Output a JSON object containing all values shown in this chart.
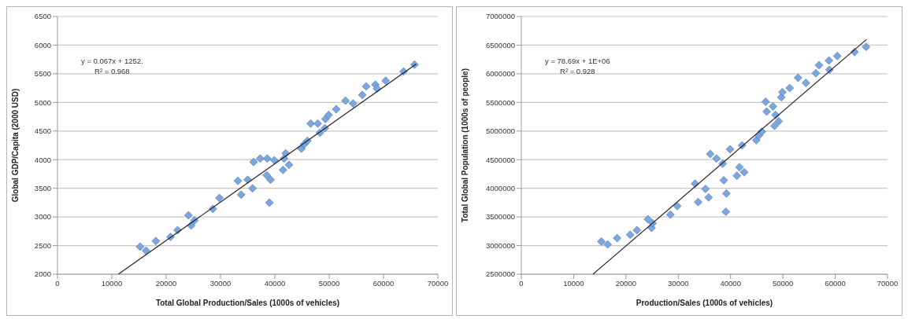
{
  "chart_data": [
    {
      "type": "scatter",
      "xlabel": "Total Global Production/Sales (1000s of vehicles)",
      "ylabel": "Global GDP/Capita (2000 USD)",
      "xlim": [
        0,
        70000
      ],
      "xticks": [
        0,
        10000,
        20000,
        30000,
        40000,
        50000,
        60000,
        70000
      ],
      "ylim": [
        2000,
        6500
      ],
      "yticks": [
        2000,
        2500,
        3000,
        3500,
        4000,
        4500,
        5000,
        5500,
        6000,
        6500
      ],
      "grid": "y",
      "annotations": [
        "y = 0.067x + 1252.",
        "R² = 0.968"
      ],
      "series": [
        {
          "marker": "diamond",
          "color": "#7ba7e1",
          "x": [
            15200,
            16300,
            18100,
            20800,
            22100,
            24100,
            24600,
            25200,
            28600,
            29800,
            33200,
            33800,
            35000,
            35900,
            36100,
            37300,
            38600,
            38500,
            39200,
            39000,
            39900,
            41500,
            41700,
            42000,
            42600,
            44900,
            45400,
            46000,
            46600,
            47900,
            48300,
            49200,
            49300,
            49900,
            51300,
            53000,
            54400,
            56100,
            56800,
            58500,
            58800,
            60400,
            63700,
            65700
          ],
          "values": [
            2480,
            2410,
            2580,
            2650,
            2770,
            3030,
            2850,
            2940,
            3140,
            3330,
            3630,
            3390,
            3650,
            3500,
            3960,
            4020,
            4020,
            3730,
            3650,
            3250,
            3990,
            3820,
            4020,
            4110,
            3910,
            4190,
            4270,
            4330,
            4630,
            4630,
            4470,
            4550,
            4710,
            4780,
            4880,
            5030,
            4980,
            5130,
            5280,
            5310,
            5240,
            5380,
            5540,
            5660
          ]
        },
        {
          "type": "line",
          "marker": "none",
          "color": "#222222",
          "x": [
            11200,
            66000
          ],
          "values": [
            2000,
            5670
          ]
        }
      ]
    },
    {
      "type": "scatter",
      "xlabel": "Production/Sales (1000s of vehicles)",
      "ylabel": "Total Global Population (1000s of people)",
      "xlim": [
        0,
        70000
      ],
      "xticks": [
        0,
        10000,
        20000,
        30000,
        40000,
        50000,
        60000,
        70000
      ],
      "ylim": [
        2500000,
        7000000
      ],
      "yticks": [
        2500000,
        3000000,
        3500000,
        4000000,
        4500000,
        5000000,
        5500000,
        6000000,
        6500000,
        7000000
      ],
      "grid": "y",
      "annotations": [
        "y = 78.69x + 1E+06",
        "R² = 0.928"
      ],
      "series": [
        {
          "marker": "diamond",
          "color": "#7ba7e1",
          "x": [
            15300,
            16500,
            18300,
            20800,
            22100,
            24200,
            24900,
            25100,
            28500,
            29800,
            33200,
            33800,
            35200,
            35800,
            36100,
            37300,
            38500,
            38700,
            39200,
            39100,
            39900,
            41200,
            41700,
            42200,
            42600,
            44900,
            45400,
            46000,
            46700,
            46900,
            48100,
            48400,
            48600,
            49200,
            49700,
            49900,
            51300,
            52900,
            54400,
            56300,
            56900,
            58800,
            58900,
            60400,
            63700,
            65900
          ],
          "values": [
            3070000,
            3020000,
            3130000,
            3190000,
            3270000,
            3460000,
            3310000,
            3390000,
            3540000,
            3690000,
            4080000,
            3760000,
            3990000,
            3840000,
            4600000,
            4520000,
            4430000,
            4140000,
            3910000,
            3590000,
            4680000,
            4220000,
            4370000,
            4750000,
            4280000,
            4840000,
            4920000,
            4990000,
            5510000,
            5340000,
            5430000,
            5090000,
            5280000,
            5170000,
            5590000,
            5680000,
            5750000,
            5930000,
            5840000,
            6010000,
            6150000,
            6230000,
            6070000,
            6310000,
            6380000,
            6470000
          ]
        },
        {
          "type": "line",
          "marker": "none",
          "color": "#222222",
          "x": [
            13700,
            66000
          ],
          "values": [
            2500000,
            6600000
          ]
        }
      ]
    }
  ]
}
